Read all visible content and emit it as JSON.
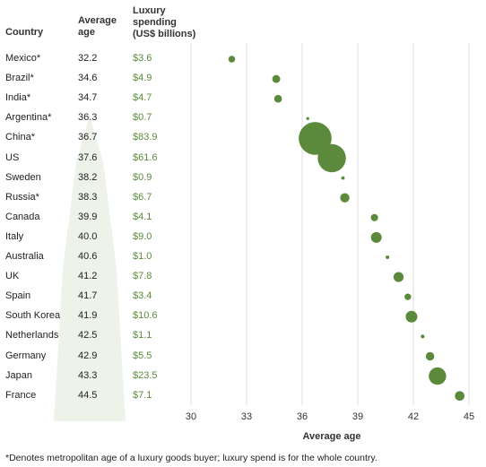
{
  "headers": {
    "country": "Country",
    "age_line1": "Average",
    "age_line2": "age",
    "spend_line1": "Luxury",
    "spend_line2": "spending",
    "spend_line3": "(US$ billions)"
  },
  "colors": {
    "dot": "#5b8a3c",
    "spend_text": "#5b8a3c",
    "grid": "#dddddd",
    "watermark": "#eef3ea"
  },
  "footnote": "*Denotes metropolitan age of a luxury goods buyer; luxury spend is for the whole country.",
  "chart_data": {
    "type": "scatter",
    "title": "",
    "xlabel": "Average age",
    "xlim": [
      30,
      45
    ],
    "xticks": [
      "30",
      "33",
      "36",
      "39",
      "42",
      "45"
    ],
    "grid": true,
    "rows": [
      {
        "country": "Mexico*",
        "age": 32.2,
        "spend": 3.6,
        "spend_label": "$3.6"
      },
      {
        "country": "Brazil*",
        "age": 34.6,
        "spend": 4.9,
        "spend_label": "$4.9"
      },
      {
        "country": "India*",
        "age": 34.7,
        "spend": 4.7,
        "spend_label": "$4.7"
      },
      {
        "country": "Argentina*",
        "age": 36.3,
        "spend": 0.7,
        "spend_label": "$0.7"
      },
      {
        "country": "China*",
        "age": 36.7,
        "spend": 83.9,
        "spend_label": "$83.9"
      },
      {
        "country": "US",
        "age": 37.6,
        "spend": 61.6,
        "spend_label": "$61.6"
      },
      {
        "country": "Sweden",
        "age": 38.2,
        "spend": 0.9,
        "spend_label": "$0.9"
      },
      {
        "country": "Russia*",
        "age": 38.3,
        "spend": 6.7,
        "spend_label": "$6.7"
      },
      {
        "country": "Canada",
        "age": 39.9,
        "spend": 4.1,
        "spend_label": "$4.1"
      },
      {
        "country": "Italy",
        "age": 40.0,
        "spend": 9.0,
        "spend_label": "$9.0"
      },
      {
        "country": "Australia",
        "age": 40.6,
        "spend": 1.0,
        "spend_label": "$1.0"
      },
      {
        "country": "UK",
        "age": 41.2,
        "spend": 7.8,
        "spend_label": "$7.8"
      },
      {
        "country": "Spain",
        "age": 41.7,
        "spend": 3.4,
        "spend_label": "$3.4"
      },
      {
        "country": "South Korea",
        "age": 41.9,
        "spend": 10.6,
        "spend_label": "$10.6"
      },
      {
        "country": "Netherlands",
        "age": 42.5,
        "spend": 1.1,
        "spend_label": "$1.1"
      },
      {
        "country": "Germany",
        "age": 42.9,
        "spend": 5.5,
        "spend_label": "$5.5"
      },
      {
        "country": "Japan",
        "age": 43.3,
        "spend": 23.5,
        "spend_label": "$23.5"
      },
      {
        "country": "France",
        "age": 44.5,
        "spend": 7.1,
        "spend_label": "$7.1"
      }
    ]
  }
}
